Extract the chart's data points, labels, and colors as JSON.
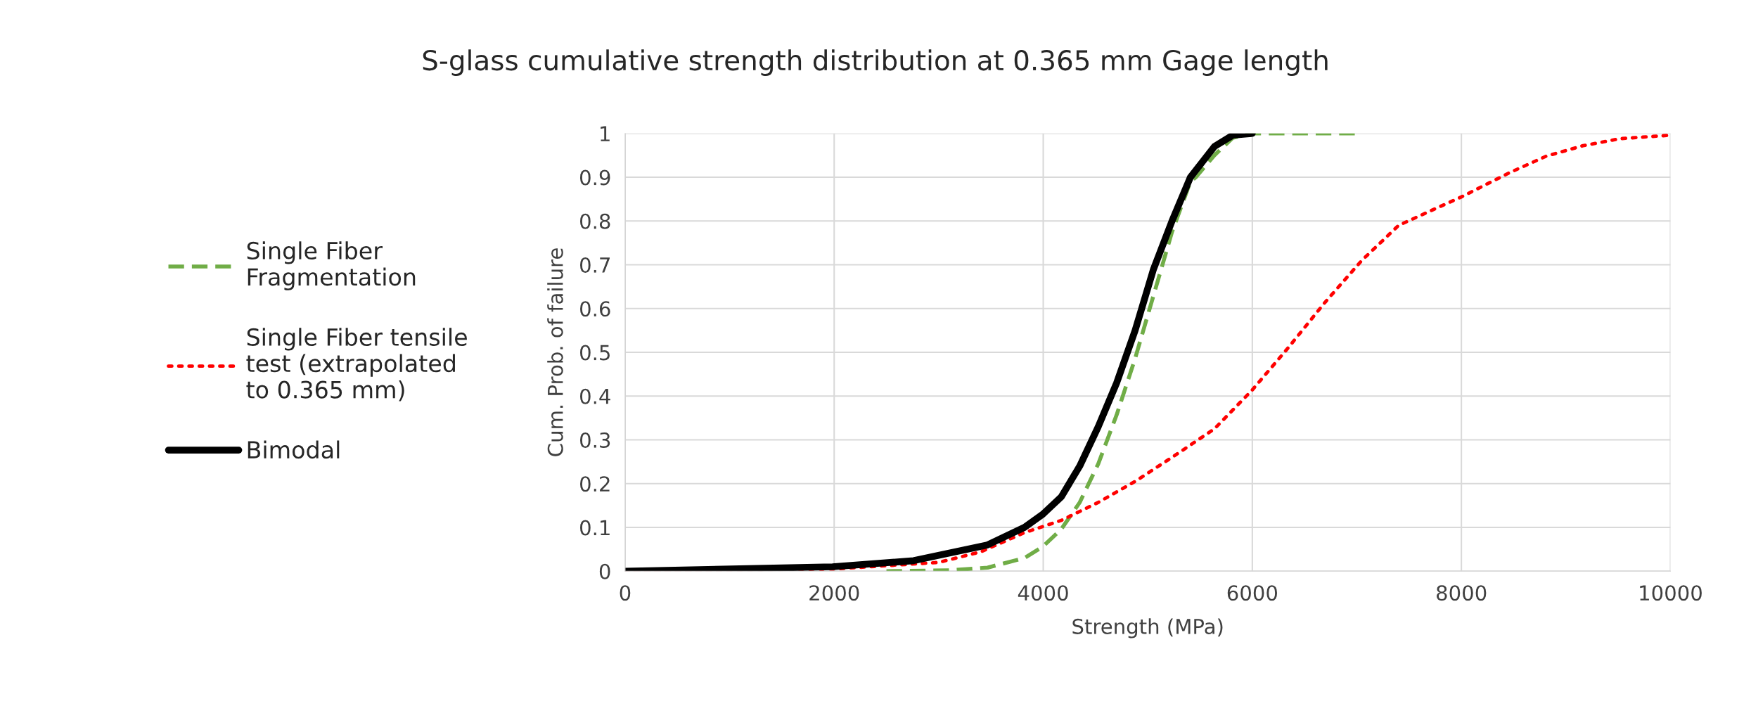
{
  "chart_data": {
    "type": "line",
    "title": "S-glass cumulative strength distribution at 0.365 mm Gage length",
    "xlabel": "Strength (MPa)",
    "ylabel": "Cum. Prob. of failure",
    "xlim": [
      0,
      10000
    ],
    "xticks": [
      0,
      2000,
      4000,
      6000,
      8000,
      10000
    ],
    "ylim": [
      0,
      1
    ],
    "yticks": [
      0,
      0.1,
      0.2,
      0.3,
      0.4,
      0.5,
      0.6,
      0.7,
      0.8,
      0.9,
      1
    ],
    "grid": true,
    "legend": "left",
    "series": [
      {
        "name": "Single Fiber\nFragmentation",
        "color": "#70ad47",
        "line_style": "dashed",
        "x": [
          2500,
          3113,
          3467,
          3820,
          3996,
          4173,
          4349,
          4526,
          4702,
          4879,
          5055,
          5232,
          5408,
          5460,
          5637,
          5813,
          6000,
          7000
        ],
        "values": [
          0,
          0.002,
          0.008,
          0.03,
          0.056,
          0.096,
          0.157,
          0.245,
          0.357,
          0.486,
          0.63,
          0.775,
          0.89,
          0.9,
          0.95,
          0.99,
          1,
          1
        ]
      },
      {
        "name": "Single Fiber tensile\ntest (extrapolated\nto 0.365 mm)",
        "color": "#ff0000",
        "line_style": "dotted",
        "x": [
          0,
          2000,
          3000,
          3400,
          3820,
          4173,
          4526,
          4879,
          5232,
          5637,
          6000,
          6342,
          6695,
          7048,
          7400,
          8000,
          8458,
          8811,
          9164,
          9516,
          10000
        ],
        "values": [
          0,
          0.005,
          0.02,
          0.044,
          0.088,
          0.116,
          0.157,
          0.205,
          0.26,
          0.325,
          0.414,
          0.51,
          0.614,
          0.71,
          0.79,
          0.855,
          0.91,
          0.948,
          0.972,
          0.988,
          0.996
        ]
      },
      {
        "name": "Bimodal",
        "color": "#000000",
        "line_style": "solid",
        "x": [
          0,
          1984,
          2760,
          3467,
          3820,
          3996,
          4173,
          4349,
          4526,
          4702,
          4879,
          5055,
          5232,
          5408,
          5637,
          5813,
          6000
        ],
        "values": [
          0,
          0.01,
          0.024,
          0.06,
          0.1,
          0.13,
          0.17,
          0.24,
          0.33,
          0.43,
          0.55,
          0.69,
          0.8,
          0.9,
          0.97,
          0.996,
          1
        ]
      }
    ]
  }
}
